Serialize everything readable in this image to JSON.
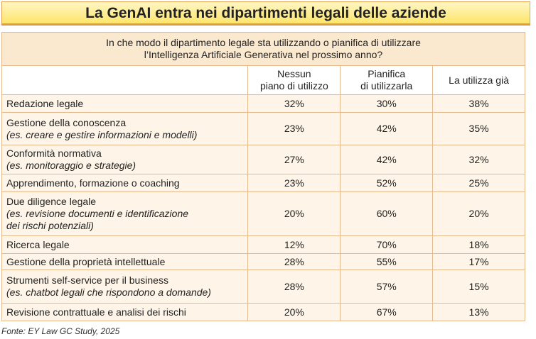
{
  "title": "La GenAI entra nei dipartimenti legali delle aziende",
  "table": {
    "question": [
      "In che modo il dipartimento legale sta utilizzando o pianifica di utilizzare",
      "l’Intelligenza Artificiale Generativa nel prossimo anno?"
    ],
    "columns": [
      [
        "Nessun",
        "piano di utilizzo"
      ],
      [
        "Pianifica",
        "di utilizzarla"
      ],
      [
        "La utilizza già"
      ]
    ],
    "rows": [
      {
        "label": "Redazione legale",
        "note": [],
        "values": [
          "32%",
          "30%",
          "38%"
        ]
      },
      {
        "label": "Gestione della conoscenza",
        "note": [
          "(es. creare e gestire informazioni e modelli)"
        ],
        "values": [
          "23%",
          "42%",
          "35%"
        ]
      },
      {
        "label": "Conformità normativa",
        "note": [
          "(es. monitoraggio e strategie)"
        ],
        "values": [
          "27%",
          "42%",
          "32%"
        ]
      },
      {
        "label": "Apprendimento, formazione o coaching",
        "note": [],
        "values": [
          "23%",
          "52%",
          "25%"
        ]
      },
      {
        "label": "Due diligence legale",
        "note": [
          "(es. revisione documenti e identificazione",
          "dei rischi potenziali)"
        ],
        "values": [
          "20%",
          "60%",
          "20%"
        ]
      },
      {
        "label": "Ricerca legale",
        "note": [],
        "values": [
          "12%",
          "70%",
          "18%"
        ]
      },
      {
        "label": "Gestione della proprietà intellettuale",
        "note": [],
        "values": [
          "28%",
          "55%",
          "17%"
        ]
      },
      {
        "label": "Strumenti self-service per il business",
        "note": [
          "(es. chatbot legali che rispondono a domande)"
        ],
        "values": [
          "28%",
          "57%",
          "15%"
        ]
      },
      {
        "label": "Revisione contrattuale e analisi dei rischi",
        "note": [],
        "values": [
          "20%",
          "67%",
          "13%"
        ]
      }
    ]
  },
  "source": "Fonte: EY Law GC Study, 2025"
}
